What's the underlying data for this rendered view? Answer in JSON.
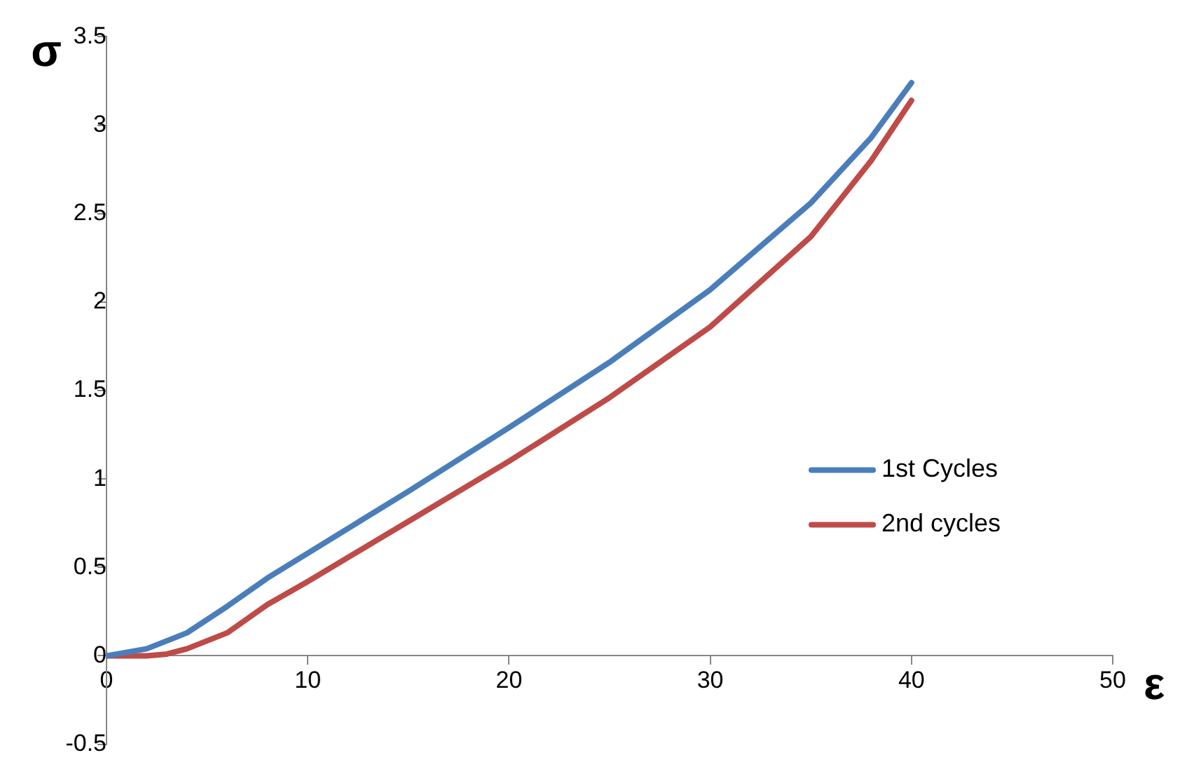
{
  "chart_data": {
    "type": "line",
    "xlabel": "ε",
    "ylabel": "σ",
    "legend": "right",
    "grid": false,
    "marker": "none",
    "line_style": "solid",
    "xlim": [
      0,
      50
    ],
    "xticks": [
      0,
      10,
      20,
      30,
      40,
      50
    ],
    "ylim": [
      -0.5,
      3.5
    ],
    "yticks": [
      -0.5,
      0,
      0.5,
      1,
      1.5,
      2,
      2.5,
      3,
      3.5
    ],
    "series": [
      {
        "name": "1st Cycles",
        "color": "#4a7ebb",
        "x": [
          0,
          2,
          4,
          6,
          8,
          10,
          15,
          20,
          25,
          30,
          35,
          38,
          40
        ],
        "values": [
          0,
          0.04,
          0.13,
          0.28,
          0.44,
          0.58,
          0.93,
          1.29,
          1.66,
          2.07,
          2.56,
          2.93,
          3.24
        ]
      },
      {
        "name": "2nd cycles",
        "color": "#be4b48",
        "x": [
          0,
          2,
          3,
          4,
          6,
          8,
          10,
          15,
          20,
          25,
          30,
          35,
          38,
          40
        ],
        "values": [
          0,
          0,
          0.01,
          0.04,
          0.13,
          0.29,
          0.42,
          0.76,
          1.1,
          1.46,
          1.86,
          2.37,
          2.8,
          3.14
        ]
      }
    ]
  }
}
